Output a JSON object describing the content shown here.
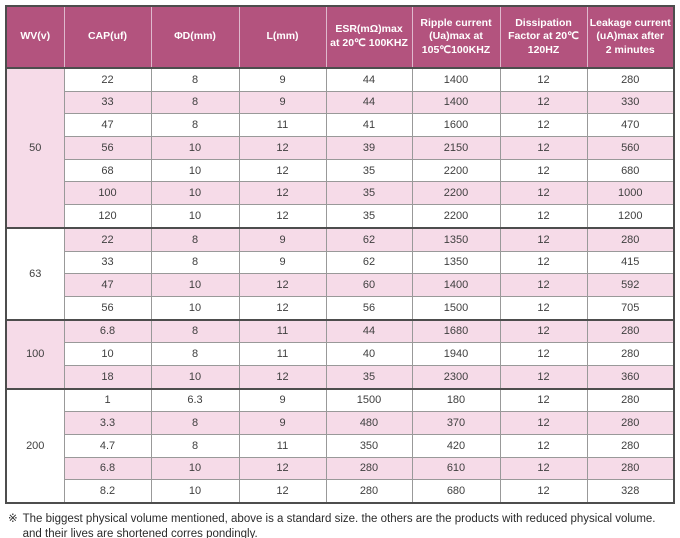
{
  "table": {
    "headers": [
      {
        "name": "wv",
        "lines": [
          "WV(v)"
        ]
      },
      {
        "name": "cap",
        "lines": [
          "CAP(uf)"
        ]
      },
      {
        "name": "diameter",
        "lines": [
          "ΦD(mm)"
        ]
      },
      {
        "name": "length",
        "lines": [
          "L(mm)"
        ]
      },
      {
        "name": "esr",
        "lines": [
          "ESR(mΩ)max",
          "at 20℃ 100KHZ"
        ]
      },
      {
        "name": "ripple",
        "lines": [
          "Ripple current",
          "(Ua)max at",
          "105℃100KHZ"
        ]
      },
      {
        "name": "dissipation",
        "lines": [
          "Dissipation",
          "Factor at 20℃",
          "120HZ"
        ]
      },
      {
        "name": "leakage",
        "lines": [
          "Leakage current",
          "(uA)max after",
          "2 minutes"
        ]
      }
    ],
    "groups": [
      {
        "wv": "50",
        "rows": [
          [
            "22",
            "8",
            "9",
            "44",
            "1400",
            "12",
            "280"
          ],
          [
            "33",
            "8",
            "9",
            "44",
            "1400",
            "12",
            "330"
          ],
          [
            "47",
            "8",
            "11",
            "41",
            "1600",
            "12",
            "470"
          ],
          [
            "56",
            "10",
            "12",
            "39",
            "2150",
            "12",
            "560"
          ],
          [
            "68",
            "10",
            "12",
            "35",
            "2200",
            "12",
            "680"
          ],
          [
            "100",
            "10",
            "12",
            "35",
            "2200",
            "12",
            "1000"
          ],
          [
            "120",
            "10",
            "12",
            "35",
            "2200",
            "12",
            "1200"
          ]
        ]
      },
      {
        "wv": "63",
        "rows": [
          [
            "22",
            "8",
            "9",
            "62",
            "1350",
            "12",
            "280"
          ],
          [
            "33",
            "8",
            "9",
            "62",
            "1350",
            "12",
            "415"
          ],
          [
            "47",
            "10",
            "12",
            "60",
            "1400",
            "12",
            "592"
          ],
          [
            "56",
            "10",
            "12",
            "56",
            "1500",
            "12",
            "705"
          ]
        ]
      },
      {
        "wv": "100",
        "rows": [
          [
            "6.8",
            "8",
            "11",
            "44",
            "1680",
            "12",
            "280"
          ],
          [
            "10",
            "8",
            "11",
            "40",
            "1940",
            "12",
            "280"
          ],
          [
            "18",
            "10",
            "12",
            "35",
            "2300",
            "12",
            "360"
          ]
        ]
      },
      {
        "wv": "200",
        "rows": [
          [
            "1",
            "6.3",
            "9",
            "1500",
            "180",
            "12",
            "280"
          ],
          [
            "3.3",
            "8",
            "9",
            "480",
            "370",
            "12",
            "280"
          ],
          [
            "4.7",
            "8",
            "11",
            "350",
            "420",
            "12",
            "280"
          ],
          [
            "6.8",
            "10",
            "12",
            "280",
            "610",
            "12",
            "280"
          ],
          [
            "8.2",
            "10",
            "12",
            "280",
            "680",
            "12",
            "328"
          ]
        ]
      }
    ]
  },
  "note": {
    "marker": "※",
    "line1": "The biggest physical volume mentioned, above is a standard size. the others are the products with reduced physical volume.",
    "line2": "and their lives are shortened corres pondingly."
  },
  "colors": {
    "header_bg": "#b3537e",
    "header_text": "#ffffff",
    "row_pink": "#f6dbe8",
    "row_white": "#ffffff",
    "border_dark": "#4d4d4d",
    "border_gray": "#999999",
    "header_divider": "#dfb9cd",
    "cell_text": "#404040",
    "note_text": "#2b2b2b"
  }
}
